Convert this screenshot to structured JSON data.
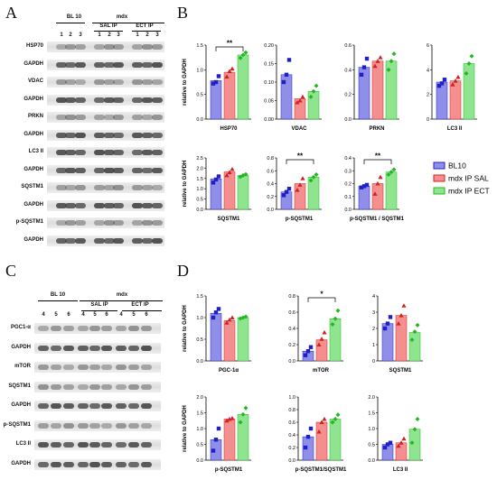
{
  "panels": {
    "a": "A",
    "b": "B",
    "c": "C",
    "d": "D"
  },
  "blots_top": {
    "groups": {
      "bl10": "BL 10",
      "mdx": "mdx",
      "sal": "SAL IP",
      "ect": "ECT IP"
    },
    "lanes": [
      "1",
      "2",
      "3",
      "1",
      "2",
      "3",
      "1",
      "2",
      "3"
    ],
    "rows": [
      "HSP70",
      "GAPDH",
      "VDAC",
      "GAPDH",
      "PRKN",
      "GAPDH",
      "LC3 II",
      "GAPDH",
      "SQSTM1",
      "GAPDH",
      "p-SQSTM1",
      "GAPDH"
    ]
  },
  "blots_bottom": {
    "groups": {
      "bl10": "BL 10",
      "mdx": "mdx",
      "sal": "SAL IP",
      "ect": "ECT IP"
    },
    "lanes": [
      "4",
      "5",
      "6",
      "4",
      "5",
      "6",
      "4",
      "5",
      "6"
    ],
    "rows": [
      "PGC1-α",
      "GAPDH",
      "mTOR",
      "SQSTM1",
      "GAPDH",
      "p-SQSTM1",
      "LC3 II",
      "GAPDH"
    ]
  },
  "legend": [
    {
      "label": "BL10",
      "color": "#3333cc"
    },
    {
      "label": "mdx IP SAL",
      "color": "#dd3333"
    },
    {
      "label": "mdx IP ECT",
      "color": "#33cc33"
    }
  ],
  "colors": {
    "bl10_fill": "#8f8fea",
    "sal_fill": "#f38f8f",
    "ect_fill": "#8fe58f",
    "bl10_dot": "#2020c8",
    "sal_dot": "#d42020",
    "ect_dot": "#22b822"
  },
  "chart_data": [
    {
      "type": "bar",
      "panel": "B",
      "xlabel": "HSP70",
      "ylabel": "relative to GAPDH",
      "ylim": [
        0,
        1.5
      ],
      "yticks": [
        "0.0",
        "0.5",
        "1.0",
        "1.5"
      ],
      "values": [
        0.78,
        0.95,
        1.3
      ],
      "points": [
        [
          0.72,
          0.75,
          0.87
        ],
        [
          0.86,
          0.97,
          1.02
        ],
        [
          1.24,
          1.3,
          1.35
        ]
      ],
      "sig": {
        "from": 0,
        "to": 2,
        "label": "**"
      }
    },
    {
      "type": "bar",
      "panel": "B",
      "xlabel": "VDAC",
      "ylabel": "",
      "ylim": [
        0,
        0.2
      ],
      "yticks": [
        "0.00",
        "0.05",
        "0.10",
        "0.15",
        "0.20"
      ],
      "values": [
        0.12,
        0.055,
        0.075
      ],
      "points": [
        [
          0.1,
          0.12,
          0.16
        ],
        [
          0.045,
          0.05,
          0.06
        ],
        [
          0.06,
          0.075,
          0.09
        ]
      ]
    },
    {
      "type": "bar",
      "panel": "B",
      "xlabel": "PRKN",
      "ylabel": "",
      "ylim": [
        0,
        0.6
      ],
      "yticks": [
        "0.0",
        "0.2",
        "0.4",
        "0.6"
      ],
      "values": [
        0.42,
        0.47,
        0.47
      ],
      "points": [
        [
          0.36,
          0.42,
          0.49
        ],
        [
          0.43,
          0.47,
          0.5
        ],
        [
          0.4,
          0.47,
          0.53
        ]
      ]
    },
    {
      "type": "bar",
      "panel": "B",
      "xlabel": "LC3 II",
      "ylabel": "",
      "ylim": [
        0,
        6
      ],
      "yticks": [
        "0",
        "2",
        "4",
        "6"
      ],
      "values": [
        3.0,
        3.1,
        4.5
      ],
      "points": [
        [
          2.7,
          2.9,
          3.2
        ],
        [
          2.8,
          3.1,
          3.4
        ],
        [
          3.7,
          4.5,
          5.1
        ]
      ]
    },
    {
      "type": "bar",
      "panel": "B",
      "xlabel": "SQSTM1",
      "ylabel": "relative to GAPDH",
      "ylim": [
        0,
        2.5
      ],
      "yticks": [
        "0.0",
        "0.5",
        "1.0",
        "1.5",
        "2.0",
        "2.5"
      ],
      "values": [
        1.48,
        1.82,
        1.65
      ],
      "points": [
        [
          1.3,
          1.45,
          1.6
        ],
        [
          1.65,
          1.8,
          1.95
        ],
        [
          1.58,
          1.65,
          1.7
        ]
      ]
    },
    {
      "type": "bar",
      "panel": "B",
      "xlabel": "p-SQSTM1",
      "ylabel": "",
      "ylim": [
        0,
        0.8
      ],
      "yticks": [
        "0.0",
        "0.2",
        "0.4",
        "0.6",
        "0.8"
      ],
      "values": [
        0.27,
        0.4,
        0.5
      ],
      "points": [
        [
          0.22,
          0.27,
          0.32
        ],
        [
          0.3,
          0.38,
          0.48
        ],
        [
          0.45,
          0.5,
          0.54
        ]
      ],
      "sig": {
        "from": 0,
        "to": 2,
        "label": "**"
      }
    },
    {
      "type": "bar",
      "panel": "B",
      "xlabel": "p-SQSTM1 / SQSTM1",
      "ylabel": "",
      "ylim": [
        0,
        0.4
      ],
      "yticks": [
        "0.0",
        "0.1",
        "0.2",
        "0.3",
        "0.4"
      ],
      "values": [
        0.18,
        0.2,
        0.29
      ],
      "points": [
        [
          0.17,
          0.18,
          0.19
        ],
        [
          0.12,
          0.2,
          0.25
        ],
        [
          0.27,
          0.29,
          0.31
        ]
      ],
      "sig": {
        "from": 0,
        "to": 2,
        "label": "**"
      }
    },
    {
      "type": "bar",
      "panel": "D",
      "xlabel": "PGC-1α",
      "ylabel": "relative to GAPDH",
      "ylim": [
        0,
        1.5
      ],
      "yticks": [
        "0.0",
        "0.5",
        "1.0",
        "1.5"
      ],
      "values": [
        1.1,
        0.93,
        1.0
      ],
      "points": [
        [
          1.0,
          1.12,
          1.2
        ],
        [
          0.88,
          0.95,
          1.0
        ],
        [
          0.98,
          1.0,
          1.02
        ]
      ]
    },
    {
      "type": "bar",
      "panel": "D",
      "xlabel": "mTOR",
      "ylabel": "",
      "ylim": [
        0,
        0.8
      ],
      "yticks": [
        "0.0",
        "0.2",
        "0.4",
        "0.6",
        "0.8"
      ],
      "values": [
        0.12,
        0.26,
        0.52
      ],
      "points": [
        [
          0.07,
          0.12,
          0.17
        ],
        [
          0.2,
          0.27,
          0.35
        ],
        [
          0.45,
          0.52,
          0.62
        ]
      ],
      "sig": {
        "from": 0,
        "to": 2,
        "label": "*"
      }
    },
    {
      "type": "bar",
      "panel": "D",
      "xlabel": "SQSTM1",
      "ylabel": "",
      "ylim": [
        0,
        4
      ],
      "yticks": [
        "0",
        "1",
        "2",
        "3",
        "4"
      ],
      "values": [
        2.3,
        2.8,
        1.75
      ],
      "points": [
        [
          2.0,
          2.3,
          2.7
        ],
        [
          2.3,
          2.8,
          3.4
        ],
        [
          1.3,
          1.8,
          2.2
        ]
      ]
    },
    {
      "type": "bar",
      "panel": "D",
      "xlabel": "p-SQSTM1",
      "ylabel": "relative to GAPDH",
      "ylim": [
        0,
        2.0
      ],
      "yticks": [
        "0.0",
        "0.5",
        "1.0",
        "1.5",
        "2.0"
      ],
      "values": [
        0.65,
        1.3,
        1.45
      ],
      "points": [
        [
          0.3,
          0.65,
          1.0
        ],
        [
          1.25,
          1.3,
          1.33
        ],
        [
          1.2,
          1.45,
          1.65
        ]
      ]
    },
    {
      "type": "bar",
      "panel": "D",
      "xlabel": "p-SQSTM1/SQSTM1",
      "ylabel": "",
      "ylim": [
        0,
        1.0
      ],
      "yticks": [
        "0.0",
        "0.2",
        "0.4",
        "0.6",
        "0.8",
        "1.0"
      ],
      "values": [
        0.37,
        0.6,
        0.65
      ],
      "points": [
        [
          0.2,
          0.37,
          0.5
        ],
        [
          0.45,
          0.6,
          0.65
        ],
        [
          0.6,
          0.65,
          0.72
        ]
      ]
    },
    {
      "type": "bar",
      "panel": "D",
      "xlabel": "LC3 II",
      "ylabel": "",
      "ylim": [
        0,
        2.0
      ],
      "yticks": [
        "0.0",
        "0.5",
        "1.0",
        "1.5",
        "2.0"
      ],
      "values": [
        0.5,
        0.55,
        0.98
      ],
      "points": [
        [
          0.4,
          0.5,
          0.55
        ],
        [
          0.45,
          0.55,
          0.68
        ],
        [
          0.55,
          0.98,
          1.3
        ]
      ]
    }
  ]
}
